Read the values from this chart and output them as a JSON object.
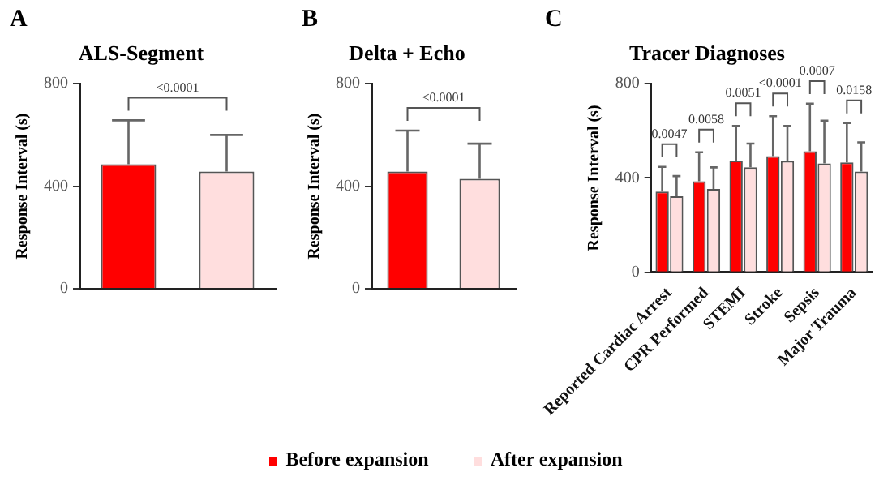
{
  "chart_data": [
    {
      "type": "bar",
      "title": "ALS-Segment",
      "ylabel": "Response Interval (s)",
      "categories": [
        null,
        null
      ],
      "values": [
        486,
        457
      ],
      "colors": [
        "#ff0000",
        "#ffdede"
      ],
      "errors": [
        [
          486,
          657
        ],
        [
          457,
          600
        ]
      ],
      "ylim": [
        0,
        800
      ],
      "yticks": [
        0,
        400,
        800
      ],
      "grid": false,
      "annotations": [
        "A",
        "<0.0001"
      ]
    },
    {
      "type": "bar",
      "title": "Delta + Echo",
      "ylabel": "Response Interval (s)",
      "categories": [
        null,
        null
      ],
      "values": [
        457,
        429
      ],
      "colors": [
        "#ff0000",
        "#ffdede"
      ],
      "errors": [
        [
          457,
          617
        ],
        [
          429,
          566
        ]
      ],
      "ylim": [
        0,
        800
      ],
      "yticks": [
        0,
        400,
        800
      ],
      "grid": false,
      "annotations": [
        "B",
        "<0.0001"
      ]
    },
    {
      "type": "bar",
      "title": "Tracer Diagnoses",
      "ylabel": "Response Interval (s)",
      "categories": [
        "Reported Cardiac Arrest",
        "CPR Performed",
        "STEMI",
        "Stroke",
        "Sepsis",
        "Major Trauma"
      ],
      "ylim": [
        0,
        800
      ],
      "yticks": [
        0,
        400,
        800
      ],
      "grid": false,
      "legend": "bottom",
      "series": [
        {
          "name": "Before expansion",
          "color": "#ff0000",
          "values": [
            342,
            386,
            474,
            493,
            513,
            466
          ],
          "errors": [
            [
              342,
              447
            ],
            [
              386,
              509
            ],
            [
              474,
              621
            ],
            [
              493,
              662
            ],
            [
              513,
              715
            ],
            [
              466,
              633
            ]
          ]
        },
        {
          "name": "After expansion",
          "color": "#ffdede",
          "values": [
            322,
            353,
            445,
            472,
            462,
            427
          ],
          "errors": [
            [
              322,
              408
            ],
            [
              353,
              445
            ],
            [
              445,
              546
            ],
            [
              472,
              621
            ],
            [
              462,
              643
            ],
            [
              427,
              551
            ]
          ]
        }
      ],
      "annotations": [
        "C",
        "0.0047",
        "0.0058",
        "0.0051",
        "<0.0001",
        "0.0007",
        "0.0158"
      ]
    }
  ]
}
